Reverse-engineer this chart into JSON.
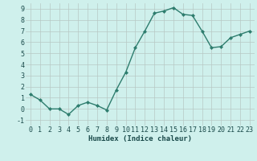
{
  "x": [
    0,
    1,
    2,
    3,
    4,
    5,
    6,
    7,
    8,
    9,
    10,
    11,
    12,
    13,
    14,
    15,
    16,
    17,
    18,
    19,
    20,
    21,
    22,
    23
  ],
  "y": [
    1.3,
    0.8,
    0.0,
    0.0,
    -0.5,
    0.3,
    0.6,
    0.3,
    -0.1,
    1.7,
    3.3,
    5.5,
    7.0,
    8.6,
    8.8,
    9.1,
    8.5,
    8.4,
    7.0,
    5.5,
    5.6,
    6.4,
    6.7,
    7.0
  ],
  "xlabel": "Humidex (Indice chaleur)",
  "line_color": "#2e7d6e",
  "marker": "D",
  "marker_size": 2.0,
  "line_width": 1.0,
  "bg_color": "#cff0ec",
  "grid_color": "#b8c8c4",
  "tick_color": "#1a4a4a",
  "xlim": [
    -0.5,
    23.5
  ],
  "ylim": [
    -1.5,
    9.5
  ],
  "yticks": [
    -1,
    0,
    1,
    2,
    3,
    4,
    5,
    6,
    7,
    8,
    9
  ],
  "xticks": [
    0,
    1,
    2,
    3,
    4,
    5,
    6,
    7,
    8,
    9,
    10,
    11,
    12,
    13,
    14,
    15,
    16,
    17,
    18,
    19,
    20,
    21,
    22,
    23
  ],
  "xlabel_fontsize": 6.5,
  "tick_fontsize": 6.0
}
